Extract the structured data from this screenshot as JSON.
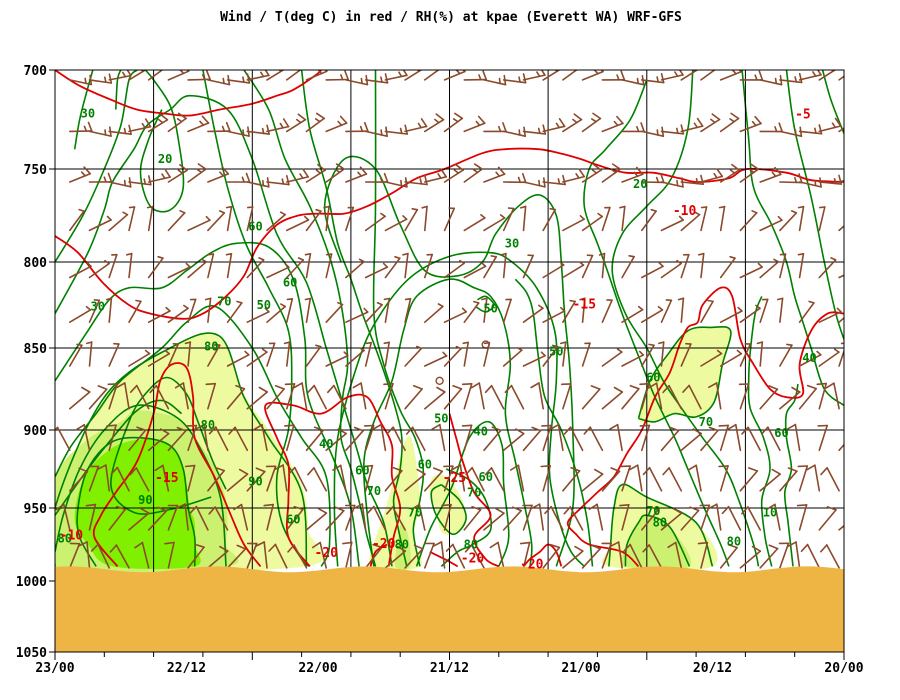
{
  "chart_data": {
    "type": "time-height-cross-section",
    "title": "Wind / T(deg C) in red / RH(%) at kpae (Everett WA)  WRF-GFS",
    "ylim": [
      1050,
      700
    ],
    "y_ticks": [
      "700",
      "750",
      "800",
      "850",
      "900",
      "950",
      "1000",
      "1050"
    ],
    "x_ticks": [
      "23/00",
      "22/12",
      "22/00",
      "21/12",
      "21/00",
      "20/12",
      "20/00"
    ],
    "colors": {
      "temperature": "#e00000",
      "rh_contour": "#008000",
      "rh_fill_70": "#eefaa0",
      "rh_fill_80": "#ccf070",
      "rh_fill_90": "#80f000",
      "wind": "#8b4a2b",
      "terrain": "#eeb545",
      "grid": "#000000"
    },
    "temperature_labels": [
      {
        "text": "-5",
        "t": 2.5,
        "p": 722
      },
      {
        "text": "-10",
        "t": 9.7,
        "p": 772
      },
      {
        "text": "-15",
        "t": 15.8,
        "p": 824
      },
      {
        "text": "-20",
        "t": 19,
        "p": 988
      },
      {
        "text": "-20",
        "t": 22.6,
        "p": 984
      },
      {
        "text": "-20",
        "t": 28,
        "p": 974
      },
      {
        "text": "-20",
        "t": 31.5,
        "p": 980
      },
      {
        "text": "-25",
        "t": 23.7,
        "p": 930
      },
      {
        "text": "-15",
        "t": 41.2,
        "p": 930
      },
      {
        "text": "-10",
        "t": 47,
        "p": 968
      },
      {
        "text": "-15",
        "t": 55.8,
        "p": 990
      }
    ],
    "rh_labels": [
      {
        "text": "30",
        "t": 46,
        "p": 722
      },
      {
        "text": "20",
        "t": 41.3,
        "p": 745
      },
      {
        "text": "60",
        "t": 35.8,
        "p": 781
      },
      {
        "text": "60",
        "t": 33.7,
        "p": 812
      },
      {
        "text": "70",
        "t": 37.7,
        "p": 823
      },
      {
        "text": "50",
        "t": 35.3,
        "p": 825
      },
      {
        "text": "30",
        "t": 45.4,
        "p": 826
      },
      {
        "text": "80",
        "t": 38.5,
        "p": 849
      },
      {
        "text": "80",
        "t": 38.7,
        "p": 897
      },
      {
        "text": "90",
        "t": 42.5,
        "p": 945
      },
      {
        "text": "90",
        "t": 35.8,
        "p": 933
      },
      {
        "text": "80",
        "t": 47.4,
        "p": 971
      },
      {
        "text": "40",
        "t": 31.5,
        "p": 909
      },
      {
        "text": "60",
        "t": 29.3,
        "p": 926
      },
      {
        "text": "70",
        "t": 28.6,
        "p": 939
      },
      {
        "text": "70",
        "t": 26.1,
        "p": 953
      },
      {
        "text": "60",
        "t": 33.5,
        "p": 958
      },
      {
        "text": "50",
        "t": 24.5,
        "p": 893
      },
      {
        "text": "40",
        "t": 22.1,
        "p": 901
      },
      {
        "text": "60",
        "t": 21.8,
        "p": 930
      },
      {
        "text": "70",
        "t": 22.5,
        "p": 940
      },
      {
        "text": "80",
        "t": 22.7,
        "p": 975
      },
      {
        "text": "80",
        "t": 26.9,
        "p": 975
      },
      {
        "text": "60",
        "t": 25.5,
        "p": 922
      },
      {
        "text": "30",
        "t": 20.2,
        "p": 790
      },
      {
        "text": "50",
        "t": 21.5,
        "p": 827
      },
      {
        "text": "50",
        "t": 17.5,
        "p": 852
      },
      {
        "text": "20",
        "t": 12.4,
        "p": 758
      },
      {
        "text": "60",
        "t": 11.6,
        "p": 868
      },
      {
        "text": "70",
        "t": 8.4,
        "p": 895
      },
      {
        "text": "60",
        "t": 3.8,
        "p": 902
      },
      {
        "text": "40",
        "t": 2.1,
        "p": 856
      },
      {
        "text": "70",
        "t": 11.6,
        "p": 952
      },
      {
        "text": "80",
        "t": 11.2,
        "p": 960
      },
      {
        "text": "10",
        "t": 4.5,
        "p": 953
      },
      {
        "text": "80",
        "t": 6.7,
        "p": 973
      }
    ],
    "rh_fill_regions": [
      {
        "level": 70,
        "points": [
          [
            48,
            990
          ],
          [
            48,
            952
          ],
          [
            45,
            880
          ],
          [
            41,
            850
          ],
          [
            38,
            843
          ],
          [
            36.5,
            878
          ],
          [
            35,
            900
          ],
          [
            33,
            935
          ],
          [
            32.6,
            965
          ],
          [
            32.8,
            990
          ]
        ]
      },
      {
        "level": 70,
        "points": [
          [
            37.6,
            938
          ],
          [
            38.4,
            920
          ],
          [
            39.3,
            895
          ],
          [
            40,
            878
          ],
          [
            41.2,
            868
          ],
          [
            42.5,
            878
          ],
          [
            43.4,
            892
          ],
          [
            44,
            910
          ],
          [
            44.5,
            926
          ],
          [
            44.6,
            935
          ],
          [
            43.5,
            950
          ],
          [
            42.5,
            955
          ],
          [
            41,
            950
          ],
          [
            39.5,
            945
          ],
          [
            38.2,
            942
          ]
        ]
      },
      {
        "level": 80,
        "points": [
          [
            48,
            990
          ],
          [
            48,
            932
          ],
          [
            46,
            906
          ],
          [
            44,
            895
          ],
          [
            43,
            888
          ],
          [
            40.5,
            893
          ],
          [
            39.5,
            905
          ],
          [
            38.5,
            920
          ],
          [
            37.7,
            940
          ],
          [
            37.5,
            958
          ],
          [
            37.6,
            975
          ],
          [
            37.6,
            990
          ]
        ]
      },
      {
        "level": 90,
        "points": [
          [
            44.5,
            990
          ],
          [
            46,
            975
          ],
          [
            46.8,
            958
          ],
          [
            46.2,
            930
          ],
          [
            44.6,
            912
          ],
          [
            42.8,
            906
          ],
          [
            41.2,
            908
          ],
          [
            40.4,
            918
          ],
          [
            40,
            935
          ],
          [
            39.8,
            950
          ],
          [
            39.5,
            960
          ],
          [
            39.5,
            975
          ],
          [
            39.5,
            990
          ]
        ]
      },
      {
        "level": 70,
        "points": [
          [
            24.2,
            930
          ],
          [
            23.3,
            943
          ],
          [
            23,
            955
          ],
          [
            23.1,
            962
          ],
          [
            23.8,
            968
          ],
          [
            24.5,
            966
          ],
          [
            24.8,
            952
          ],
          [
            25.2,
            940
          ],
          [
            25,
            930
          ]
        ]
      },
      {
        "level": 70,
        "points": [
          [
            28.8,
            990
          ],
          [
            28,
            955
          ],
          [
            27.2,
            925
          ],
          [
            26.6,
            905
          ],
          [
            26.2,
            910
          ],
          [
            25.8,
            945
          ],
          [
            26.2,
            970
          ],
          [
            25.8,
            990
          ]
        ]
      },
      {
        "level": 80,
        "points": [
          [
            27.3,
            990
          ],
          [
            27.1,
            970
          ],
          [
            26.9,
            960
          ],
          [
            26.5,
            970
          ],
          [
            26.4,
            990
          ]
        ]
      },
      {
        "level": 70,
        "points": [
          [
            8,
            990
          ],
          [
            9,
            960
          ],
          [
            12,
            943
          ],
          [
            13.5,
            935
          ],
          [
            14,
            950
          ],
          [
            14.2,
            975
          ],
          [
            14.3,
            990
          ]
        ]
      },
      {
        "level": 80,
        "points": [
          [
            9.4,
            990
          ],
          [
            10.6,
            963
          ],
          [
            12,
            955
          ],
          [
            12.5,
            960
          ],
          [
            13.2,
            975
          ],
          [
            13.3,
            990
          ]
        ]
      },
      {
        "level": 70,
        "points": [
          [
            12.5,
            893
          ],
          [
            11.8,
            870
          ],
          [
            10.8,
            855
          ],
          [
            9.5,
            840
          ],
          [
            8.1,
            838
          ],
          [
            6.9,
            840
          ],
          [
            7.4,
            860
          ],
          [
            7.9,
            883
          ],
          [
            9,
            892
          ],
          [
            10.3,
            890
          ],
          [
            11.5,
            895
          ]
        ]
      }
    ],
    "wind_barbs": "grid of barbs every ~1.2 h and ~25 hPa"
  }
}
